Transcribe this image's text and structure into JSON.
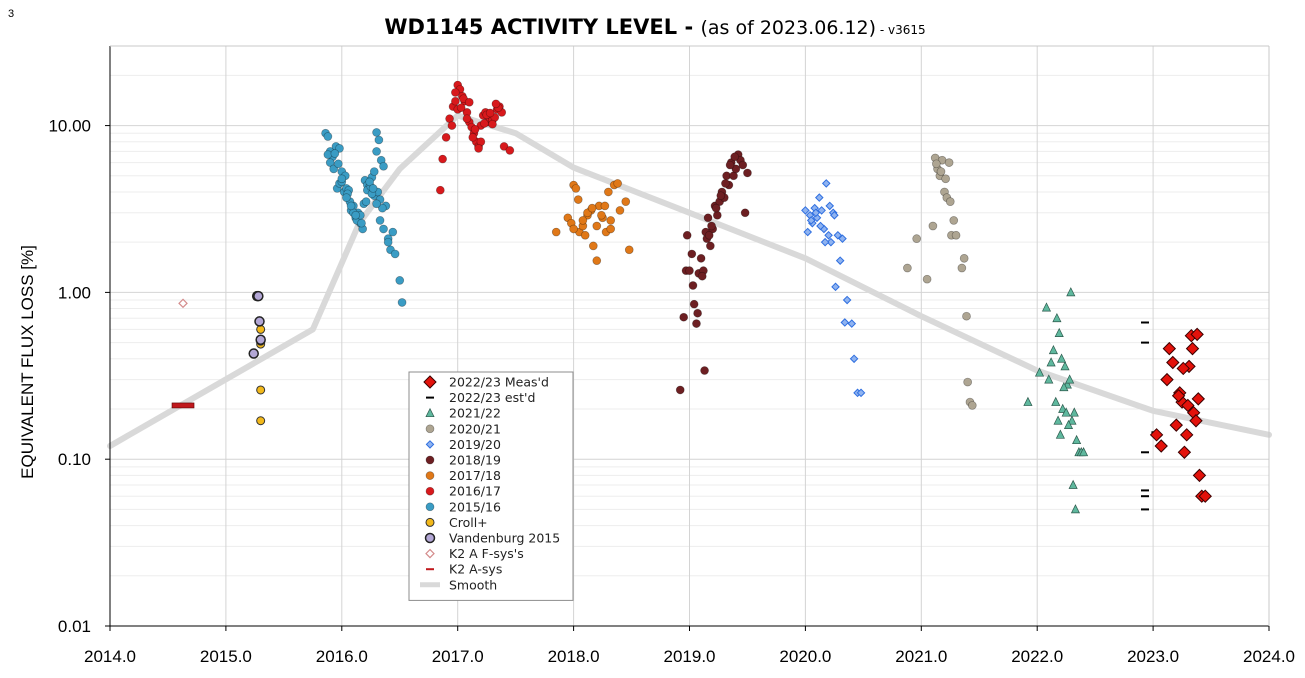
{
  "page_number": "3",
  "chart_data": {
    "type": "scatter",
    "title": "WD1145 ACTIVITY LEVEL",
    "title_sep": " - ",
    "subtitle": "(as of 2023.06.12)",
    "version": " - v3615",
    "xlabel": "",
    "ylabel": "EQUIVALENT FLUX LOSS [%]",
    "yscale": "log",
    "xlim": [
      2014.0,
      2024.0
    ],
    "ylim": [
      0.01,
      30
    ],
    "x_ticks": [
      "2014.0",
      "2015.0",
      "2016.0",
      "2017.0",
      "2018.0",
      "2019.0",
      "2020.0",
      "2021.0",
      "2022.0",
      "2023.0",
      "2024.0"
    ],
    "y_ticks": [
      "0.01",
      "0.10",
      "1.00",
      "10.00"
    ],
    "grid": true,
    "legend_position": "bottom-center",
    "colors": {
      "meas_2223": "#e3120b",
      "est_2223": "#000000",
      "s2122": "#5fb89e",
      "s2021": "#aea592",
      "s1920": "#2f6fe0",
      "s1819": "#6d1f22",
      "s1718": "#e07818",
      "s1617": "#d8191c",
      "s1516": "#3a9cc4",
      "croll": "#f2b81a",
      "vand": "#b3a7d6",
      "k2f": "#d48c8c",
      "k2a": "#c0181c",
      "smooth": "#d9d9d9"
    },
    "legend": [
      {
        "key": "meas_2223",
        "label": "2022/23 Meas'd",
        "marker": "diamond"
      },
      {
        "key": "est_2223",
        "label": "2022/23 est'd",
        "marker": "dash"
      },
      {
        "key": "s2122",
        "label": "2021/22",
        "marker": "triangle"
      },
      {
        "key": "s2021",
        "label": "2020/21",
        "marker": "circle"
      },
      {
        "key": "s1920",
        "label": "2019/20",
        "marker": "diamond-small"
      },
      {
        "key": "s1819",
        "label": "2018/19",
        "marker": "circle"
      },
      {
        "key": "s1718",
        "label": "2017/18",
        "marker": "circle"
      },
      {
        "key": "s1617",
        "label": "2016/17",
        "marker": "circle"
      },
      {
        "key": "s1516",
        "label": "2015/16",
        "marker": "circle"
      },
      {
        "key": "croll",
        "label": "Croll+",
        "marker": "circle-outline"
      },
      {
        "key": "vand",
        "label": "Vandenburg 2015",
        "marker": "circle-outline-large"
      },
      {
        "key": "k2f",
        "label": "K2 A  F-sys's",
        "marker": "diamond-open"
      },
      {
        "key": "k2a",
        "label": "K2 A-sys",
        "marker": "dash"
      },
      {
        "key": "smooth",
        "label": "Smooth",
        "marker": "line"
      }
    ],
    "series": [
      {
        "key": "smooth",
        "name": "Smooth",
        "x": [
          2014.0,
          2015.75,
          2016.15,
          2016.5,
          2017.0,
          2017.5,
          2018.0,
          2019.0,
          2020.0,
          2021.0,
          2022.0,
          2023.0,
          2024.0
        ],
        "y": [
          0.12,
          0.6,
          2.6,
          5.5,
          11.5,
          9.0,
          5.6,
          3.0,
          1.6,
          0.72,
          0.34,
          0.195,
          0.14
        ]
      },
      {
        "key": "k2a",
        "name": "K2 A-sys",
        "x": [
          2014.63
        ],
        "y": [
          0.21
        ]
      },
      {
        "key": "k2f",
        "name": "K2 A  F-sys's",
        "x": [
          2014.63
        ],
        "y": [
          0.86
        ]
      },
      {
        "key": "vand",
        "name": "Vandenburg 2015",
        "x": [
          2015.27,
          2015.28,
          2015.29,
          2015.3,
          2015.24
        ],
        "y": [
          0.95,
          0.95,
          0.67,
          0.52,
          0.43
        ]
      },
      {
        "key": "croll",
        "name": "Croll+",
        "x": [
          2015.3,
          2015.3,
          2015.3,
          2015.3,
          2015.3
        ],
        "y": [
          0.6,
          0.49,
          0.26,
          0.17,
          0.51
        ]
      },
      {
        "key": "s1516",
        "name": "2015/16",
        "x": [
          2015.86,
          2015.88,
          2015.9,
          2015.92,
          2015.95,
          2015.98,
          2016.0,
          2016.02,
          2016.04,
          2016.06,
          2016.08,
          2016.1,
          2016.12,
          2016.14,
          2016.16,
          2016.18,
          2016.2,
          2016.22,
          2016.24,
          2016.26,
          2016.28,
          2016.3,
          2016.32,
          2016.34,
          2016.36,
          2016.38,
          2016.4,
          2016.42,
          2016.44,
          2016.46,
          2016.5,
          2016.52,
          2015.88,
          2015.9,
          2015.93,
          2015.96,
          2015.98,
          2016.0,
          2016.03,
          2016.05,
          2016.07,
          2016.1,
          2016.13,
          2016.16,
          2016.19,
          2016.22,
          2016.25,
          2016.28,
          2016.31,
          2016.33,
          2016.35,
          2015.94,
          2015.97,
          2016.0,
          2016.04,
          2016.08,
          2016.12,
          2016.17,
          2016.21,
          2016.26,
          2016.3,
          2016.24,
          2016.27,
          2016.3,
          2016.33,
          2016.36,
          2016.4
        ],
        "y": [
          9.0,
          8.6,
          7.0,
          6.5,
          7.5,
          7.3,
          5.3,
          4.0,
          4.2,
          4.1,
          3.1,
          3.3,
          2.8,
          3.0,
          2.6,
          2.4,
          4.7,
          4.4,
          4.3,
          4.9,
          5.3,
          9.1,
          8.2,
          6.2,
          5.7,
          3.3,
          2.1,
          1.8,
          2.3,
          1.7,
          1.18,
          0.87,
          6.7,
          6.0,
          5.5,
          4.2,
          4.5,
          4.6,
          5.0,
          3.9,
          3.5,
          3.0,
          2.7,
          2.9,
          3.4,
          4.1,
          4.3,
          3.8,
          4.0,
          3.6,
          3.2,
          6.8,
          5.9,
          4.8,
          3.7,
          3.3,
          2.9,
          2.6,
          3.5,
          3.9,
          7.0,
          4.6,
          4.2,
          3.4,
          2.7,
          2.4,
          2.0
        ]
      },
      {
        "key": "s1617",
        "name": "2016/17",
        "x": [
          2016.85,
          2016.87,
          2016.9,
          2016.93,
          2016.96,
          2016.98,
          2017.0,
          2017.02,
          2017.04,
          2017.06,
          2017.08,
          2017.1,
          2017.12,
          2017.14,
          2017.16,
          2017.18,
          2017.2,
          2017.22,
          2017.24,
          2017.26,
          2017.28,
          2017.3,
          2017.32,
          2017.34,
          2017.36,
          2017.38,
          2017.4,
          2017.45,
          2016.95,
          2017.0,
          2017.05,
          2017.1,
          2017.15,
          2017.2,
          2017.25,
          2017.3,
          2017.35,
          2016.98,
          2017.03,
          2017.08,
          2017.13,
          2017.18,
          2017.23,
          2017.28,
          2017.33
        ],
        "y": [
          4.1,
          6.3,
          8.5,
          11.0,
          13.0,
          14.0,
          17.5,
          16.5,
          15.0,
          14.0,
          12.0,
          10.5,
          9.8,
          9.0,
          8.0,
          7.5,
          10.0,
          11.5,
          12.0,
          10.5,
          11.0,
          10.8,
          11.2,
          12.5,
          13.0,
          12.0,
          7.5,
          7.1,
          10.0,
          12.5,
          14.5,
          13.8,
          9.5,
          8.0,
          11.6,
          10.2,
          12.8,
          15.8,
          12.8,
          11.0,
          8.5,
          7.3,
          10.3,
          11.9,
          13.5
        ]
      },
      {
        "key": "s1718",
        "name": "2017/18",
        "x": [
          2017.85,
          2017.95,
          2017.98,
          2018.0,
          2018.02,
          2018.05,
          2018.08,
          2018.1,
          2018.12,
          2018.15,
          2018.17,
          2018.2,
          2018.22,
          2018.25,
          2018.27,
          2018.3,
          2018.32,
          2018.35,
          2018.38,
          2018.4,
          2018.45,
          2018.48,
          2018.0,
          2018.04,
          2018.08,
          2018.12,
          2018.16,
          2018.2,
          2018.24,
          2018.28,
          2018.32
        ],
        "y": [
          2.3,
          2.8,
          2.6,
          4.4,
          4.2,
          2.3,
          2.5,
          2.2,
          2.9,
          3.1,
          1.9,
          1.55,
          3.3,
          2.8,
          3.3,
          4.0,
          2.7,
          4.4,
          4.5,
          3.1,
          3.5,
          1.8,
          2.4,
          3.6,
          2.7,
          3.0,
          3.2,
          2.5,
          2.9,
          2.3,
          2.4
        ]
      },
      {
        "key": "s1819",
        "name": "2018/19",
        "x": [
          2018.92,
          2018.95,
          2018.97,
          2019.0,
          2019.02,
          2019.04,
          2019.06,
          2019.08,
          2019.1,
          2019.12,
          2019.14,
          2019.16,
          2019.18,
          2019.2,
          2019.22,
          2019.24,
          2019.26,
          2019.28,
          2019.3,
          2019.32,
          2019.34,
          2019.36,
          2019.38,
          2019.4,
          2019.42,
          2019.44,
          2019.46,
          2019.48,
          2019.5,
          2018.98,
          2019.03,
          2019.07,
          2019.11,
          2019.15,
          2019.19,
          2019.23,
          2019.27,
          2019.31,
          2019.35,
          2019.39,
          2019.13,
          2019.17
        ],
        "y": [
          0.26,
          0.71,
          1.35,
          1.35,
          1.7,
          0.85,
          0.65,
          1.3,
          1.6,
          1.35,
          2.3,
          2.8,
          1.9,
          2.4,
          3.3,
          2.9,
          3.5,
          4.0,
          3.7,
          5.0,
          4.4,
          6.0,
          5.0,
          5.5,
          6.7,
          6.2,
          5.8,
          3.0,
          5.2,
          2.2,
          1.1,
          0.75,
          1.25,
          2.1,
          2.5,
          3.2,
          3.8,
          4.5,
          5.8,
          6.5,
          0.34,
          2.2
        ]
      },
      {
        "key": "s1920",
        "name": "2019/20",
        "x": [
          2020.0,
          2020.02,
          2020.04,
          2020.06,
          2020.08,
          2020.1,
          2020.12,
          2020.14,
          2020.16,
          2020.18,
          2020.2,
          2020.22,
          2020.24,
          2020.26,
          2020.28,
          2020.3,
          2020.32,
          2020.34,
          2020.36,
          2020.4,
          2020.42,
          2020.45,
          2020.48,
          2020.05,
          2020.09,
          2020.13,
          2020.17,
          2020.21,
          2020.25
        ],
        "y": [
          3.1,
          2.3,
          2.9,
          2.6,
          3.2,
          2.8,
          3.7,
          3.1,
          2.4,
          4.5,
          2.2,
          2.0,
          3.0,
          1.08,
          2.2,
          1.55,
          2.1,
          0.66,
          0.9,
          0.65,
          0.4,
          0.25,
          0.25,
          2.7,
          3.0,
          2.5,
          2.0,
          3.3,
          2.9
        ]
      },
      {
        "key": "s2021",
        "name": "2020/21",
        "x": [
          2020.88,
          2020.96,
          2021.05,
          2021.1,
          2021.12,
          2021.14,
          2021.16,
          2021.18,
          2021.2,
          2021.22,
          2021.24,
          2021.26,
          2021.28,
          2021.3,
          2021.35,
          2021.37,
          2021.39,
          2021.4,
          2021.42,
          2021.44,
          2021.13,
          2021.17,
          2021.21,
          2021.25
        ],
        "y": [
          1.4,
          2.1,
          1.2,
          2.5,
          6.4,
          5.5,
          5.0,
          6.2,
          4.0,
          3.7,
          6.0,
          2.2,
          2.7,
          2.2,
          1.4,
          1.6,
          0.72,
          0.29,
          0.22,
          0.21,
          5.9,
          5.3,
          4.8,
          3.5
        ]
      },
      {
        "key": "s2122",
        "name": "2021/22",
        "x": [
          2021.92,
          2022.02,
          2022.08,
          2022.1,
          2022.12,
          2022.14,
          2022.16,
          2022.18,
          2022.2,
          2022.22,
          2022.24,
          2022.26,
          2022.28,
          2022.3,
          2022.32,
          2022.34,
          2022.36,
          2022.38,
          2022.4,
          2022.17,
          2022.19,
          2022.21,
          2022.23,
          2022.25,
          2022.27,
          2022.29,
          2022.31,
          2022.33
        ],
        "y": [
          0.22,
          0.33,
          0.81,
          0.3,
          0.38,
          0.45,
          0.22,
          0.17,
          0.14,
          0.2,
          0.36,
          0.28,
          0.3,
          0.17,
          0.19,
          0.13,
          0.11,
          0.11,
          0.11,
          0.7,
          0.57,
          0.4,
          0.27,
          0.19,
          0.16,
          1.0,
          0.07,
          0.05
        ]
      },
      {
        "key": "meas_2223",
        "name": "2022/23 Meas'd",
        "x": [
          2023.03,
          2023.07,
          2023.12,
          2023.14,
          2023.17,
          2023.2,
          2023.23,
          2023.25,
          2023.27,
          2023.29,
          2023.31,
          2023.33,
          2023.35,
          2023.37,
          2023.39,
          2023.4,
          2023.42,
          2023.45,
          2023.22,
          2023.26,
          2023.3,
          2023.34,
          2023.38
        ],
        "y": [
          0.14,
          0.12,
          0.3,
          0.46,
          0.38,
          0.16,
          0.25,
          0.22,
          0.11,
          0.14,
          0.36,
          0.55,
          0.19,
          0.17,
          0.23,
          0.08,
          0.06,
          0.06,
          0.24,
          0.35,
          0.21,
          0.46,
          0.56
        ]
      },
      {
        "key": "est_2223",
        "name": "2022/23 est'd",
        "x": [
          2022.93,
          2022.93,
          2022.93,
          2022.93,
          2022.93,
          2022.93,
          2023.02
        ],
        "y": [
          0.66,
          0.5,
          0.11,
          0.065,
          0.06,
          0.05,
          0.145
        ]
      }
    ]
  }
}
